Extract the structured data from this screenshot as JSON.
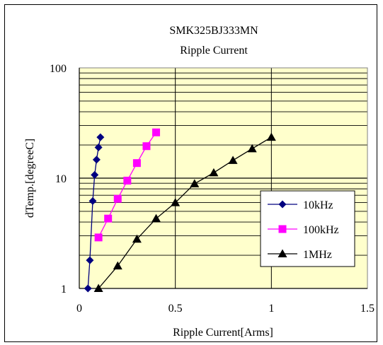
{
  "chart_data": {
    "type": "line",
    "title": "SMK325BJ333MN",
    "subtitle": "Ripple Current",
    "xlabel": "Ripple Current[Arms]",
    "ylabel": "dTemp.[degreeC]",
    "xlim": [
      0,
      1.5
    ],
    "ylim": [
      1,
      100
    ],
    "yscale": "log",
    "x_ticks": [
      "0",
      "0.5",
      "1",
      "1.5"
    ],
    "y_ticks": [
      "1",
      "10",
      "100"
    ],
    "grid": true,
    "plot_background": "#ffffcc",
    "legend_position": "lower-right",
    "series": [
      {
        "name": "10kHz",
        "color": "#000080",
        "marker": "diamond",
        "x": [
          0.045,
          0.055,
          0.07,
          0.08,
          0.09,
          0.1,
          0.11
        ],
        "y": [
          1.0,
          1.8,
          6.2,
          10.7,
          14.7,
          19.0,
          23.5
        ]
      },
      {
        "name": "100kHz",
        "color": "#ff00ff",
        "marker": "square",
        "x": [
          0.1,
          0.15,
          0.2,
          0.25,
          0.3,
          0.35,
          0.4
        ],
        "y": [
          2.9,
          4.3,
          6.5,
          9.5,
          13.7,
          19.5,
          26.0
        ]
      },
      {
        "name": "1MHz",
        "color": "#000000",
        "marker": "triangle",
        "x": [
          0.1,
          0.2,
          0.3,
          0.4,
          0.5,
          0.6,
          0.7,
          0.8,
          0.9,
          1.0
        ],
        "y": [
          1.0,
          1.6,
          2.8,
          4.3,
          6.0,
          8.9,
          11.2,
          14.5,
          18.5,
          23.5
        ]
      }
    ]
  }
}
